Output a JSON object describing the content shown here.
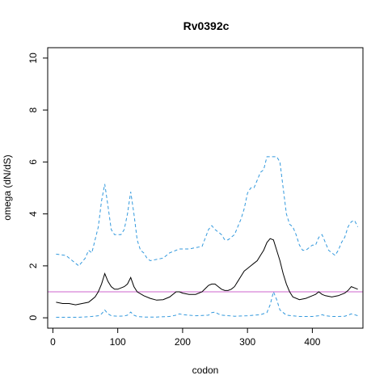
{
  "chart_data": {
    "type": "line",
    "title": "Rv0392c",
    "xlabel": "codon",
    "ylabel": "omega (dN/dS)",
    "xlim": [
      -8,
      478
    ],
    "ylim": [
      -0.4,
      10.4
    ],
    "x_ticks": [
      0,
      100,
      200,
      300,
      400
    ],
    "y_ticks": [
      0,
      2,
      4,
      6,
      8,
      10
    ],
    "grid": false,
    "reference_line": {
      "y": 1,
      "color": "#cc66cc"
    },
    "series": [
      {
        "style": "dashed",
        "color": "#3399dd",
        "x": [
          5,
          20,
          30,
          40,
          50,
          55,
          60,
          65,
          70,
          75,
          80,
          85,
          90,
          95,
          100,
          105,
          110,
          115,
          120,
          125,
          130,
          135,
          140,
          145,
          150,
          160,
          170,
          180,
          190,
          195,
          200,
          210,
          220,
          230,
          240,
          245,
          250,
          255,
          260,
          265,
          270,
          275,
          280,
          285,
          290,
          295,
          300,
          305,
          310,
          315,
          320,
          325,
          330,
          335,
          340,
          345,
          350,
          355,
          360,
          365,
          370,
          375,
          380,
          385,
          390,
          395,
          400,
          405,
          410,
          415,
          420,
          425,
          430,
          435,
          440,
          445,
          450,
          455,
          460,
          465,
          470
        ],
        "y": [
          2.45,
          2.4,
          2.2,
          2.0,
          2.3,
          2.6,
          2.5,
          3.0,
          3.5,
          4.5,
          5.15,
          4.3,
          3.4,
          3.2,
          3.2,
          3.2,
          3.4,
          4.0,
          4.85,
          4.0,
          3.0,
          2.6,
          2.5,
          2.3,
          2.2,
          2.25,
          2.3,
          2.5,
          2.6,
          2.65,
          2.65,
          2.65,
          2.7,
          2.75,
          3.4,
          3.55,
          3.4,
          3.3,
          3.2,
          3.0,
          3.0,
          3.1,
          3.2,
          3.5,
          3.8,
          4.2,
          4.8,
          5.0,
          5.0,
          5.3,
          5.6,
          5.7,
          6.2,
          6.2,
          6.2,
          6.2,
          6.0,
          5.0,
          4.0,
          3.6,
          3.5,
          3.2,
          2.8,
          2.6,
          2.6,
          2.7,
          2.8,
          2.8,
          3.1,
          3.2,
          2.9,
          2.6,
          2.5,
          2.4,
          2.6,
          2.9,
          3.1,
          3.5,
          3.7,
          3.75,
          3.5
        ]
      },
      {
        "style": "solid",
        "color": "#000000",
        "x": [
          5,
          15,
          25,
          35,
          45,
          55,
          60,
          65,
          70,
          75,
          80,
          85,
          90,
          95,
          100,
          105,
          110,
          115,
          120,
          125,
          130,
          140,
          150,
          160,
          170,
          180,
          190,
          195,
          200,
          210,
          220,
          230,
          240,
          245,
          250,
          255,
          260,
          265,
          270,
          275,
          280,
          285,
          290,
          295,
          300,
          305,
          310,
          315,
          320,
          325,
          330,
          335,
          340,
          345,
          350,
          355,
          360,
          365,
          370,
          380,
          390,
          400,
          405,
          410,
          415,
          420,
          430,
          440,
          450,
          455,
          460,
          465,
          470
        ],
        "y": [
          0.6,
          0.55,
          0.55,
          0.5,
          0.55,
          0.6,
          0.7,
          0.8,
          1.0,
          1.3,
          1.7,
          1.4,
          1.2,
          1.1,
          1.1,
          1.15,
          1.2,
          1.3,
          1.55,
          1.2,
          1.0,
          0.85,
          0.75,
          0.68,
          0.7,
          0.8,
          1.0,
          1.0,
          0.95,
          0.9,
          0.9,
          1.0,
          1.25,
          1.3,
          1.3,
          1.2,
          1.1,
          1.05,
          1.05,
          1.1,
          1.2,
          1.4,
          1.6,
          1.8,
          1.9,
          2.0,
          2.1,
          2.2,
          2.4,
          2.6,
          2.9,
          3.05,
          3.0,
          2.6,
          2.2,
          1.7,
          1.3,
          1.0,
          0.8,
          0.7,
          0.75,
          0.85,
          0.9,
          1.0,
          0.9,
          0.85,
          0.8,
          0.85,
          0.95,
          1.05,
          1.2,
          1.15,
          1.1
        ]
      },
      {
        "style": "dashed",
        "color": "#3399dd",
        "x": [
          5,
          20,
          40,
          60,
          70,
          75,
          80,
          85,
          90,
          100,
          110,
          115,
          120,
          125,
          130,
          140,
          160,
          180,
          190,
          195,
          200,
          220,
          240,
          245,
          250,
          255,
          260,
          280,
          300,
          310,
          320,
          330,
          335,
          340,
          345,
          350,
          360,
          380,
          400,
          410,
          415,
          420,
          430,
          440,
          450,
          455,
          460,
          465,
          470
        ],
        "y": [
          0.02,
          0.02,
          0.02,
          0.05,
          0.08,
          0.15,
          0.3,
          0.15,
          0.08,
          0.06,
          0.07,
          0.1,
          0.22,
          0.1,
          0.05,
          0.03,
          0.03,
          0.05,
          0.1,
          0.15,
          0.12,
          0.08,
          0.1,
          0.2,
          0.22,
          0.15,
          0.1,
          0.06,
          0.08,
          0.1,
          0.12,
          0.2,
          0.5,
          1.0,
          0.7,
          0.3,
          0.1,
          0.05,
          0.05,
          0.08,
          0.12,
          0.08,
          0.05,
          0.05,
          0.06,
          0.1,
          0.15,
          0.12,
          0.08
        ]
      }
    ]
  }
}
